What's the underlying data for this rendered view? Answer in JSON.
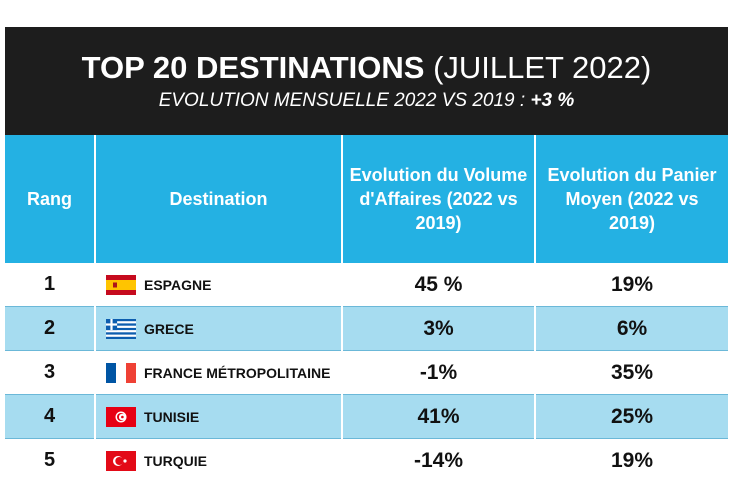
{
  "header": {
    "title_main": "TOP 20 DESTINATIONS",
    "title_suffix": "(JUILLET 2022)",
    "subtitle_text": "EVOLUTION MENSUELLE 2022 VS 2019 :",
    "subtitle_value": "+3 %"
  },
  "table": {
    "columns": [
      "Rang",
      "Destination",
      "Evolution du Volume d'Affaires (2022 vs 2019)",
      "Evolution du Panier Moyen (2022 vs 2019)"
    ],
    "rows": [
      {
        "rank": "1",
        "flag": "flag-spain-icon",
        "destination": "ESPAGNE",
        "volume": "45 %",
        "panier": "19%"
      },
      {
        "rank": "2",
        "flag": "flag-greece-icon",
        "destination": "GRECE",
        "volume": "3%",
        "panier": "6%"
      },
      {
        "rank": "3",
        "flag": "flag-france-icon",
        "destination": "FRANCE MÉTROPOLITAINE",
        "volume": "-1%",
        "panier": "35%"
      },
      {
        "rank": "4",
        "flag": "flag-tunisia-icon",
        "destination": "TUNISIE",
        "volume": "41%",
        "panier": "25%"
      },
      {
        "rank": "5",
        "flag": "flag-turkey-icon",
        "destination": "TURQUIE",
        "volume": "-14%",
        "panier": "19%"
      }
    ]
  },
  "colors": {
    "header_bg": "#1d1d1d",
    "column_header_bg": "#24b1e3",
    "alt_row_bg": "#a6dcf0"
  }
}
